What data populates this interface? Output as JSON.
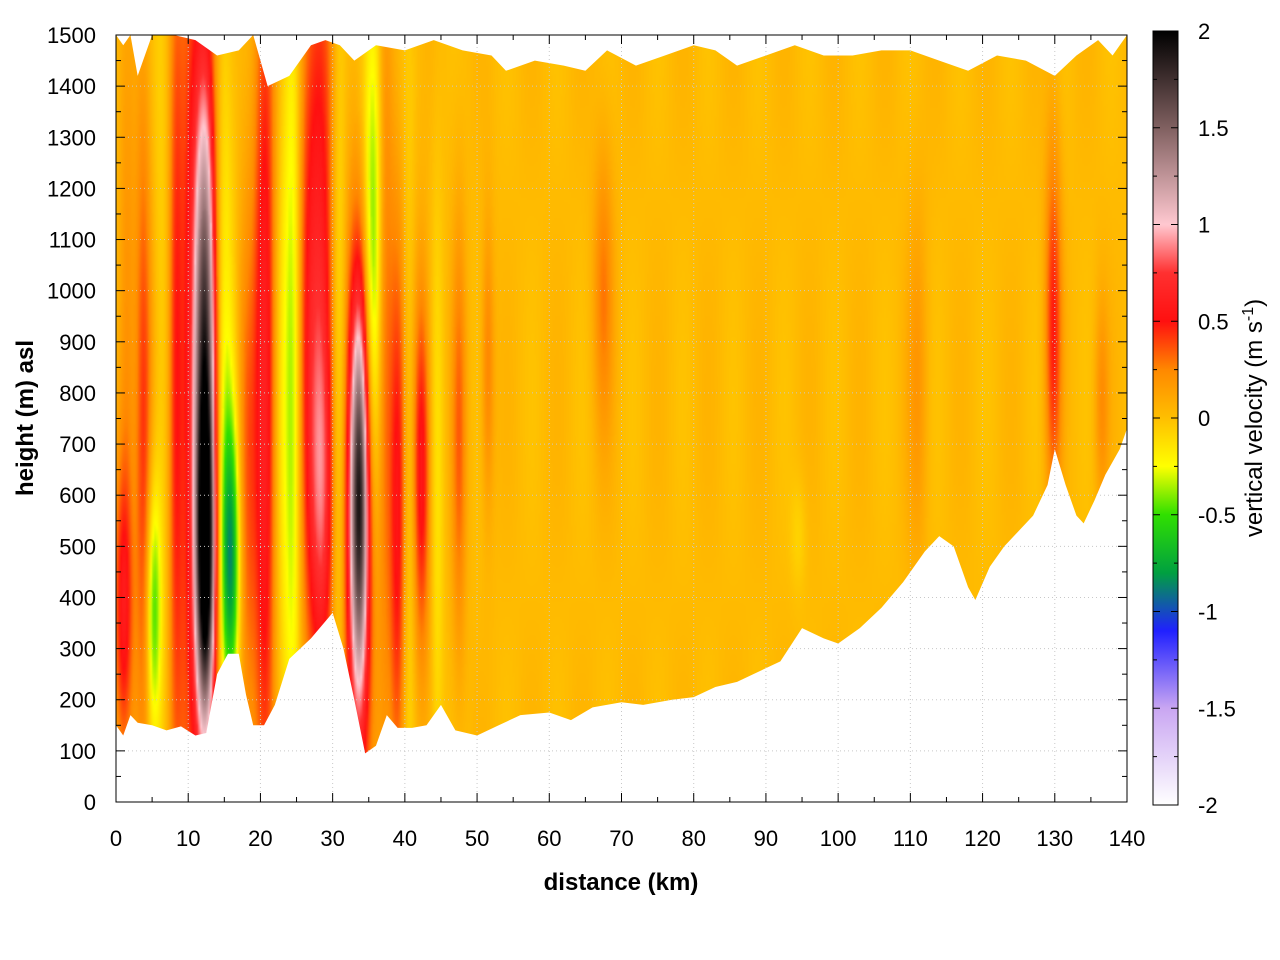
{
  "chart_data": {
    "type": "heatmap",
    "xlabel": "distance (km)",
    "ylabel": "height (m) asl",
    "colorbar_label": "vertical velocity (m s",
    "colorbar_label_sup": "-1",
    "colorbar_label_end": ")",
    "xlim": [
      0,
      140
    ],
    "ylim": [
      0,
      1500
    ],
    "clim": [
      -2,
      2
    ],
    "xticks": [
      "0",
      "10",
      "20",
      "30",
      "40",
      "50",
      "60",
      "70",
      "80",
      "90",
      "100",
      "110",
      "120",
      "130",
      "140"
    ],
    "yticks": [
      "0",
      "100",
      "200",
      "300",
      "400",
      "500",
      "600",
      "700",
      "800",
      "900",
      "1000",
      "1100",
      "1200",
      "1300",
      "1400",
      "1500"
    ],
    "cticks": [
      "2",
      "1.5",
      "1",
      "0.5",
      "0",
      "-0.5",
      "-1",
      "-1.5",
      "-2"
    ],
    "grid": true,
    "colormap": [
      {
        "v": -2.0,
        "c": "#ffffff"
      },
      {
        "v": -1.5,
        "c": "#c9a6f2"
      },
      {
        "v": -1.1,
        "c": "#2020ff"
      },
      {
        "v": -0.8,
        "c": "#00a040"
      },
      {
        "v": -0.5,
        "c": "#30e000"
      },
      {
        "v": -0.25,
        "c": "#ffff00"
      },
      {
        "v": 0.0,
        "c": "#ffbf00"
      },
      {
        "v": 0.25,
        "c": "#ff8800"
      },
      {
        "v": 0.5,
        "c": "#ff1010"
      },
      {
        "v": 0.75,
        "c": "#ff3030"
      },
      {
        "v": 1.0,
        "c": "#ffc8d0"
      },
      {
        "v": 1.5,
        "c": "#806060"
      },
      {
        "v": 2.0,
        "c": "#000000"
      }
    ],
    "surface_profile": [
      [
        0,
        150
      ],
      [
        1,
        130
      ],
      [
        2,
        170
      ],
      [
        3,
        155
      ],
      [
        5,
        150
      ],
      [
        7,
        140
      ],
      [
        9,
        148
      ],
      [
        11,
        130
      ],
      [
        12.5,
        135
      ],
      [
        14,
        250
      ],
      [
        15.5,
        290
      ],
      [
        17,
        290
      ],
      [
        18,
        210
      ],
      [
        19,
        150
      ],
      [
        20.5,
        150
      ],
      [
        22,
        190
      ],
      [
        24,
        280
      ],
      [
        27,
        320
      ],
      [
        30,
        370
      ],
      [
        31.5,
        300
      ],
      [
        33,
        200
      ],
      [
        34.5,
        95
      ],
      [
        36,
        110
      ],
      [
        37.5,
        170
      ],
      [
        39,
        145
      ],
      [
        41,
        145
      ],
      [
        43,
        150
      ],
      [
        45,
        190
      ],
      [
        47,
        140
      ],
      [
        50,
        130
      ],
      [
        53,
        150
      ],
      [
        56,
        170
      ],
      [
        60,
        175
      ],
      [
        63,
        160
      ],
      [
        66,
        185
      ],
      [
        70,
        195
      ],
      [
        73,
        190
      ],
      [
        77,
        200
      ],
      [
        80,
        205
      ],
      [
        83,
        225
      ],
      [
        86,
        235
      ],
      [
        89,
        255
      ],
      [
        92,
        275
      ],
      [
        95,
        340
      ],
      [
        98,
        320
      ],
      [
        100,
        310
      ],
      [
        103,
        340
      ],
      [
        106,
        380
      ],
      [
        109,
        430
      ],
      [
        112,
        490
      ],
      [
        114,
        520
      ],
      [
        116,
        500
      ],
      [
        118,
        420
      ],
      [
        119,
        395
      ],
      [
        121,
        460
      ],
      [
        123,
        500
      ],
      [
        125,
        530
      ],
      [
        127,
        560
      ],
      [
        129,
        620
      ],
      [
        130,
        690
      ],
      [
        131.5,
        620
      ],
      [
        133,
        560
      ],
      [
        134,
        545
      ],
      [
        135.5,
        590
      ],
      [
        137,
        640
      ],
      [
        139,
        690
      ],
      [
        140,
        730
      ]
    ],
    "top_profile": [
      [
        0,
        1500
      ],
      [
        1,
        1480
      ],
      [
        2,
        1500
      ],
      [
        3,
        1420
      ],
      [
        5,
        1500
      ],
      [
        8,
        1500
      ],
      [
        11,
        1490
      ],
      [
        14,
        1460
      ],
      [
        17,
        1470
      ],
      [
        19,
        1500
      ],
      [
        21,
        1400
      ],
      [
        24,
        1420
      ],
      [
        27,
        1480
      ],
      [
        29,
        1490
      ],
      [
        31,
        1480
      ],
      [
        33,
        1450
      ],
      [
        36,
        1480
      ],
      [
        40,
        1470
      ],
      [
        44,
        1490
      ],
      [
        48,
        1470
      ],
      [
        52,
        1460
      ],
      [
        54,
        1430
      ],
      [
        58,
        1450
      ],
      [
        62,
        1440
      ],
      [
        65,
        1430
      ],
      [
        68,
        1470
      ],
      [
        72,
        1440
      ],
      [
        76,
        1460
      ],
      [
        80,
        1480
      ],
      [
        83,
        1470
      ],
      [
        86,
        1440
      ],
      [
        90,
        1460
      ],
      [
        94,
        1480
      ],
      [
        98,
        1460
      ],
      [
        102,
        1460
      ],
      [
        106,
        1470
      ],
      [
        110,
        1470
      ],
      [
        114,
        1450
      ],
      [
        118,
        1430
      ],
      [
        122,
        1460
      ],
      [
        126,
        1450
      ],
      [
        130,
        1420
      ],
      [
        133,
        1460
      ],
      [
        136,
        1490
      ],
      [
        138,
        1460
      ],
      [
        140,
        1500
      ]
    ],
    "features": [
      {
        "x": 1,
        "y": 380,
        "dx": 0.9,
        "dy": 200,
        "v": 0.5
      },
      {
        "x": 1.5,
        "y": 900,
        "dx": 0.8,
        "dy": 400,
        "v": 0.2
      },
      {
        "x": 3.8,
        "y": 700,
        "dx": 0.8,
        "dy": 500,
        "v": 0.4
      },
      {
        "x": 5.2,
        "y": 380,
        "dx": 0.7,
        "dy": 170,
        "v": -0.5
      },
      {
        "x": 6.5,
        "y": 900,
        "dx": 0.9,
        "dy": 600,
        "v": -0.1
      },
      {
        "x": 8.2,
        "y": 800,
        "dx": 0.7,
        "dy": 600,
        "v": 0.35
      },
      {
        "x": 10.3,
        "y": 800,
        "dx": 1.5,
        "dy": 700,
        "v": 0.4
      },
      {
        "x": 12.3,
        "y": 800,
        "dx": 1.4,
        "dy": 700,
        "v": 0.5
      },
      {
        "x": 12.4,
        "y": 980,
        "dx": 1.0,
        "dy": 300,
        "v": 1.0
      },
      {
        "x": 12.4,
        "y": 470,
        "dx": 0.9,
        "dy": 230,
        "v": 1.8
      },
      {
        "x": 14.6,
        "y": 900,
        "dx": 1.2,
        "dy": 500,
        "v": -0.3
      },
      {
        "x": 15.9,
        "y": 470,
        "dx": 0.9,
        "dy": 200,
        "v": -0.8
      },
      {
        "x": 18.0,
        "y": 600,
        "dx": 1.0,
        "dy": 400,
        "v": 0.3
      },
      {
        "x": 20.6,
        "y": 800,
        "dx": 1.1,
        "dy": 700,
        "v": 0.6
      },
      {
        "x": 23.2,
        "y": 800,
        "dx": 1.0,
        "dy": 600,
        "v": -0.2
      },
      {
        "x": 24.6,
        "y": 850,
        "dx": 0.8,
        "dy": 600,
        "v": -0.4
      },
      {
        "x": 27.8,
        "y": 1000,
        "dx": 2.0,
        "dy": 550,
        "v": 0.6
      },
      {
        "x": 28.5,
        "y": 600,
        "dx": 1.2,
        "dy": 250,
        "v": 0.45
      },
      {
        "x": 30.8,
        "y": 800,
        "dx": 0.8,
        "dy": 600,
        "v": -0.35
      },
      {
        "x": 33.5,
        "y": 500,
        "dx": 1.4,
        "dy": 400,
        "v": 0.8
      },
      {
        "x": 33.7,
        "y": 600,
        "dx": 0.8,
        "dy": 250,
        "v": 1.1
      },
      {
        "x": 35.6,
        "y": 1100,
        "dx": 0.9,
        "dy": 350,
        "v": -0.5
      },
      {
        "x": 37.2,
        "y": 900,
        "dx": 0.8,
        "dy": 500,
        "v": 0.3
      },
      {
        "x": 39.0,
        "y": 550,
        "dx": 0.8,
        "dy": 400,
        "v": 0.5
      },
      {
        "x": 40.5,
        "y": 600,
        "dx": 0.6,
        "dy": 500,
        "v": -0.15
      },
      {
        "x": 42.3,
        "y": 650,
        "dx": 0.8,
        "dy": 250,
        "v": 0.55
      },
      {
        "x": 44.5,
        "y": 500,
        "dx": 0.6,
        "dy": 500,
        "v": -0.15
      },
      {
        "x": 47.5,
        "y": 700,
        "dx": 0.7,
        "dy": 300,
        "v": 0.3
      },
      {
        "x": 51.5,
        "y": 850,
        "dx": 0.6,
        "dy": 200,
        "v": 0.25
      },
      {
        "x": 67.5,
        "y": 1000,
        "dx": 1.0,
        "dy": 200,
        "v": 0.25
      },
      {
        "x": 94.5,
        "y": 520,
        "dx": 0.8,
        "dy": 80,
        "v": -0.1
      },
      {
        "x": 111,
        "y": 820,
        "dx": 1.0,
        "dy": 250,
        "v": 0.15
      },
      {
        "x": 129.8,
        "y": 930,
        "dx": 0.8,
        "dy": 250,
        "v": 0.45
      },
      {
        "x": 136.5,
        "y": 780,
        "dx": 0.7,
        "dy": 150,
        "v": 0.2
      }
    ]
  }
}
